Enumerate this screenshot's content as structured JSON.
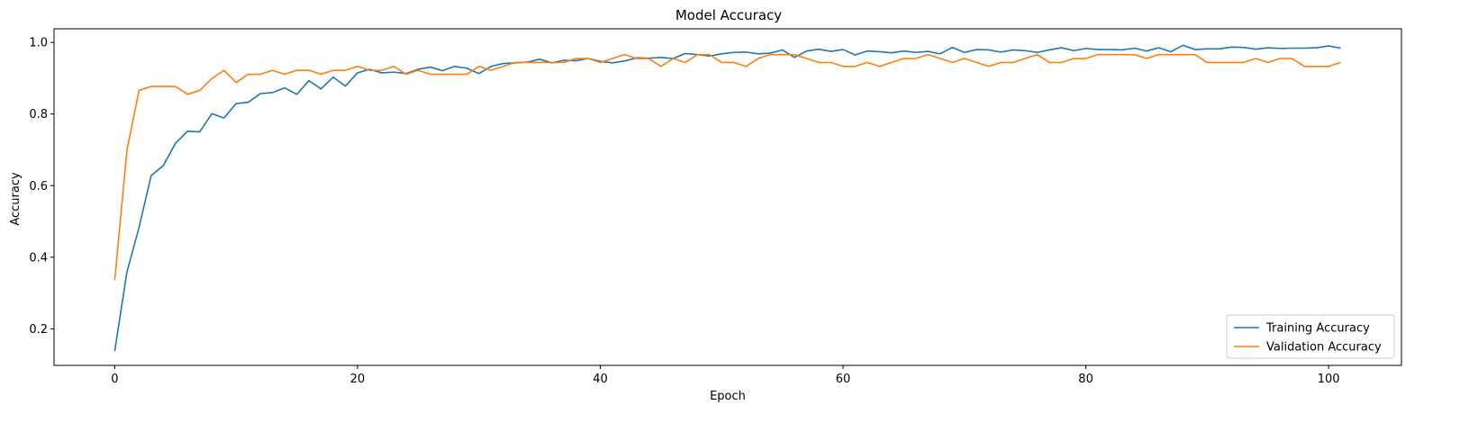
{
  "chart_data": {
    "type": "line",
    "title": "Model Accuracy",
    "xlabel": "Epoch",
    "ylabel": "Accuracy",
    "xlim": [
      -5,
      106
    ],
    "ylim": [
      0.098,
      1.038
    ],
    "x_ticks": [
      0,
      20,
      40,
      60,
      80,
      100
    ],
    "y_ticks": [
      0.2,
      0.4,
      0.6,
      0.8,
      1.0
    ],
    "x_tick_labels": [
      "0",
      "20",
      "40",
      "60",
      "80",
      "100"
    ],
    "y_tick_labels": [
      "0.2",
      "0.4",
      "0.6",
      "0.8",
      "1.0"
    ],
    "grid": false,
    "legend_position": "lower-right",
    "series": [
      {
        "name": "Training Accuracy",
        "color": "#1f77b4",
        "values": [
          0.138,
          0.358,
          0.483,
          0.628,
          0.656,
          0.718,
          0.752,
          0.75,
          0.801,
          0.789,
          0.829,
          0.833,
          0.857,
          0.86,
          0.873,
          0.855,
          0.893,
          0.87,
          0.903,
          0.878,
          0.915,
          0.925,
          0.915,
          0.917,
          0.913,
          0.925,
          0.931,
          0.921,
          0.933,
          0.928,
          0.913,
          0.933,
          0.941,
          0.943,
          0.945,
          0.953,
          0.943,
          0.95,
          0.949,
          0.955,
          0.947,
          0.943,
          0.948,
          0.957,
          0.956,
          0.958,
          0.955,
          0.969,
          0.966,
          0.962,
          0.968,
          0.972,
          0.973,
          0.968,
          0.97,
          0.979,
          0.958,
          0.976,
          0.981,
          0.975,
          0.98,
          0.965,
          0.976,
          0.974,
          0.971,
          0.976,
          0.972,
          0.975,
          0.968,
          0.986,
          0.972,
          0.98,
          0.979,
          0.973,
          0.979,
          0.977,
          0.972,
          0.979,
          0.985,
          0.977,
          0.983,
          0.98,
          0.98,
          0.979,
          0.984,
          0.976,
          0.985,
          0.974,
          0.992,
          0.98,
          0.982,
          0.982,
          0.987,
          0.986,
          0.981,
          0.985,
          0.983,
          0.984,
          0.984,
          0.985,
          0.99,
          0.984
        ]
      },
      {
        "name": "Validation Accuracy",
        "color": "#ff7f0e",
        "values": [
          0.336,
          0.698,
          0.866,
          0.877,
          0.877,
          0.877,
          0.855,
          0.866,
          0.899,
          0.922,
          0.888,
          0.911,
          0.911,
          0.922,
          0.911,
          0.922,
          0.922,
          0.911,
          0.922,
          0.922,
          0.933,
          0.922,
          0.922,
          0.933,
          0.911,
          0.922,
          0.911,
          0.911,
          0.911,
          0.911,
          0.933,
          0.922,
          0.933,
          0.944,
          0.944,
          0.944,
          0.944,
          0.944,
          0.955,
          0.955,
          0.944,
          0.955,
          0.966,
          0.955,
          0.955,
          0.933,
          0.955,
          0.944,
          0.966,
          0.966,
          0.944,
          0.944,
          0.933,
          0.955,
          0.966,
          0.966,
          0.966,
          0.955,
          0.944,
          0.944,
          0.933,
          0.933,
          0.944,
          0.933,
          0.944,
          0.955,
          0.955,
          0.966,
          0.955,
          0.944,
          0.955,
          0.944,
          0.933,
          0.944,
          0.944,
          0.955,
          0.966,
          0.944,
          0.944,
          0.955,
          0.955,
          0.966,
          0.966,
          0.966,
          0.966,
          0.955,
          0.966,
          0.966,
          0.966,
          0.966,
          0.944,
          0.944,
          0.944,
          0.944,
          0.955,
          0.944,
          0.955,
          0.955,
          0.933,
          0.933,
          0.933,
          0.944
        ]
      }
    ]
  }
}
